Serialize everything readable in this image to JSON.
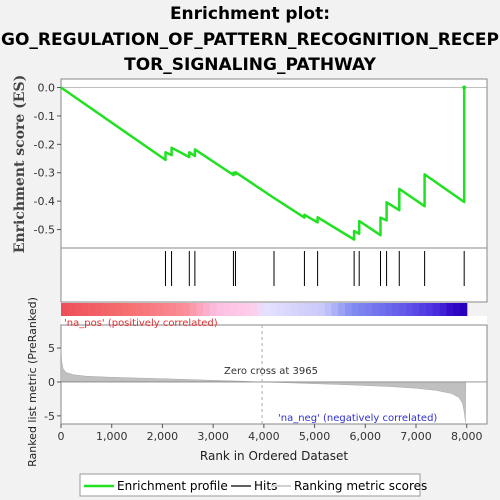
{
  "title_lines": [
    "Enrichment plot:",
    "GO_REGULATION_OF_PATTERN_RECOGNITION_RECEP",
    "TOR_SIGNALING_PATHWAY"
  ],
  "colors": {
    "es_line": "#22e022",
    "hit_line": "#000000",
    "rank_fill": "#c0c0c0",
    "pos_label": "#e03030",
    "neg_label": "#3030d0",
    "zero_cross": "#aaaaaa"
  },
  "chart_data": [
    {
      "name": "enrichment-profile",
      "type": "line",
      "ylabel": "Enrichment score (ES)",
      "xlim": [
        0,
        8400
      ],
      "ylim": [
        -0.565,
        0.03
      ],
      "yticks": [
        0.0,
        -0.1,
        -0.2,
        -0.3,
        -0.4,
        -0.5
      ],
      "ytick_labels": [
        "0.0",
        "-0.1",
        "-0.2",
        "-0.3",
        "-0.4",
        "-0.5"
      ],
      "points": [
        [
          0,
          0.0
        ],
        [
          2060,
          -0.255
        ],
        [
          2060,
          -0.228
        ],
        [
          2180,
          -0.238
        ],
        [
          2180,
          -0.212
        ],
        [
          2530,
          -0.245
        ],
        [
          2530,
          -0.228
        ],
        [
          2640,
          -0.241
        ],
        [
          2640,
          -0.218
        ],
        [
          3400,
          -0.308
        ],
        [
          3400,
          -0.3
        ],
        [
          3440,
          -0.305
        ],
        [
          3440,
          -0.298
        ],
        [
          4200,
          -0.389
        ],
        [
          4800,
          -0.458
        ],
        [
          4800,
          -0.448
        ],
        [
          5060,
          -0.475
        ],
        [
          5060,
          -0.457
        ],
        [
          5780,
          -0.535
        ],
        [
          5780,
          -0.505
        ],
        [
          5880,
          -0.515
        ],
        [
          5880,
          -0.47
        ],
        [
          6300,
          -0.52
        ],
        [
          6300,
          -0.458
        ],
        [
          6420,
          -0.468
        ],
        [
          6420,
          -0.404
        ],
        [
          6670,
          -0.432
        ],
        [
          6670,
          -0.357
        ],
        [
          7170,
          -0.418
        ],
        [
          7170,
          -0.306
        ],
        [
          7950,
          -0.403
        ],
        [
          7950,
          0.0
        ]
      ]
    },
    {
      "name": "hits",
      "type": "scatter",
      "x": [
        2060,
        2180,
        2530,
        2640,
        3400,
        3440,
        4200,
        4800,
        5060,
        5780,
        5880,
        6300,
        6420,
        6670,
        7170,
        7950
      ]
    },
    {
      "name": "ranked-list-metric",
      "type": "area",
      "xlabel": "Rank in Ordered Dataset",
      "ylabel": "Ranked list metric (PreRanked)",
      "xlim": [
        0,
        8400
      ],
      "ylim": [
        -6.2,
        8.4
      ],
      "xticks": [
        0,
        1000,
        2000,
        3000,
        4000,
        5000,
        6000,
        7000,
        8000
      ],
      "xtick_labels": [
        "0",
        "1,000",
        "2,000",
        "3,000",
        "4,000",
        "5,000",
        "6,000",
        "7,000",
        "8,000"
      ],
      "yticks": [
        5,
        0,
        -5
      ],
      "ytick_labels": [
        "5",
        "0",
        "-5"
      ],
      "points": [
        [
          0,
          5.0
        ],
        [
          15,
          3.0
        ],
        [
          40,
          2.0
        ],
        [
          100,
          1.4
        ],
        [
          250,
          1.05
        ],
        [
          500,
          0.85
        ],
        [
          1000,
          0.68
        ],
        [
          1500,
          0.58
        ],
        [
          2000,
          0.48
        ],
        [
          2500,
          0.36
        ],
        [
          3000,
          0.24
        ],
        [
          3500,
          0.12
        ],
        [
          3965,
          0.0
        ],
        [
          4500,
          -0.12
        ],
        [
          5000,
          -0.25
        ],
        [
          5500,
          -0.38
        ],
        [
          6000,
          -0.52
        ],
        [
          6500,
          -0.68
        ],
        [
          7000,
          -0.92
        ],
        [
          7400,
          -1.25
        ],
        [
          7700,
          -1.7
        ],
        [
          7850,
          -2.3
        ],
        [
          7920,
          -3.2
        ],
        [
          7955,
          -4.6
        ],
        [
          7975,
          -6.0
        ],
        [
          7980,
          0.0
        ]
      ],
      "zero_cross_text": "Zero cross at 3965",
      "zero_cross_x": 3965,
      "pos_label": "'na_pos' (positively correlated)",
      "neg_label": "'na_neg' (negatively correlated)"
    }
  ],
  "legend": {
    "items": [
      {
        "label": "Enrichment profile",
        "color": "#22e022"
      },
      {
        "label": "Hits",
        "color": "#606060"
      },
      {
        "label": "Ranking metric scores",
        "color": "#d0d0d0"
      }
    ]
  }
}
